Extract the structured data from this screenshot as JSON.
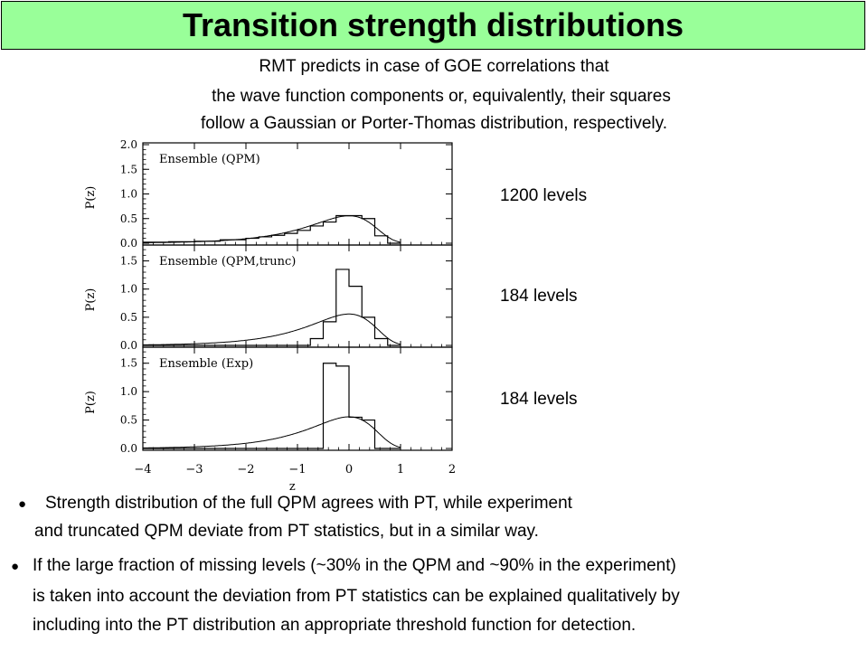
{
  "header": {
    "title": "Transition strength distributions"
  },
  "intro": {
    "line1": "RMT predicts in case of GOE correlations that",
    "line2": "the wave function components or, equivalently, their squares",
    "line3": "follow a Gaussian or Porter-Thomas distribution, respectively."
  },
  "annotations": {
    "panel1_levels": "1200 levels",
    "panel2_levels": "184 levels",
    "panel3_levels": "184 levels"
  },
  "bullets": {
    "symbol": "●",
    "b1_line1": "Strength distribution of the full QPM agrees with PT, while experiment",
    "b1_line2": "and truncated QPM deviate from PT statistics, but in a similar way.",
    "b2_line1": "If the large fraction of missing levels (~30% in the QPM and ~90% in the experiment)",
    "b2_line2": "is taken into account the deviation from PT statistics can be explained qualitatively by",
    "b2_line3": "including into the PT distribution an appropriate threshold function for detection."
  },
  "chart_data": [
    {
      "type": "line",
      "title": "Ensemble (QPM)",
      "xlabel": "z",
      "ylabel": "P(z)",
      "xlim": [
        -4,
        2
      ],
      "ylim": [
        0,
        2.0
      ],
      "yticks": [
        "0.0",
        "0.5",
        "1.0",
        "1.5",
        "2.0"
      ],
      "xticks": [
        "−4",
        "−3",
        "−2",
        "−1",
        "0",
        "1",
        "2"
      ],
      "grid": false,
      "histogram": {
        "edges": [
          -4.0,
          -3.5,
          -3.0,
          -2.5,
          -2.0,
          -1.75,
          -1.5,
          -1.25,
          -1.0,
          -0.75,
          -0.5,
          -0.25,
          0.0,
          0.25,
          0.5,
          0.75,
          1.0
        ],
        "values": [
          0.02,
          0.03,
          0.04,
          0.07,
          0.1,
          0.13,
          0.16,
          0.2,
          0.26,
          0.35,
          0.43,
          0.56,
          0.56,
          0.5,
          0.15,
          0.0
        ]
      },
      "curve": "porter-thomas-log"
    },
    {
      "type": "line",
      "title": "Ensemble (QPM,trunc)",
      "xlabel": "z",
      "ylabel": "P(z)",
      "xlim": [
        -4,
        2
      ],
      "ylim": [
        0,
        1.75
      ],
      "yticks": [
        "0.0",
        "0.5",
        "1.0",
        "1.5"
      ],
      "xticks": [
        "−4",
        "−3",
        "−2",
        "−1",
        "0",
        "1",
        "2"
      ],
      "grid": false,
      "histogram": {
        "edges": [
          -4.0,
          -0.75,
          -0.5,
          -0.25,
          0.0,
          0.25,
          0.5,
          0.75,
          1.0
        ],
        "values": [
          0.0,
          0.12,
          0.42,
          1.35,
          1.05,
          0.5,
          0.12,
          0.0
        ]
      },
      "curve": "porter-thomas-log"
    },
    {
      "type": "line",
      "title": "Ensemble (Exp)",
      "xlabel": "z",
      "ylabel": "P(z)",
      "xlim": [
        -4,
        2
      ],
      "ylim": [
        0,
        1.75
      ],
      "yticks": [
        "0.0",
        "0.5",
        "1.0",
        "1.5"
      ],
      "xticks": [
        "−4",
        "−3",
        "−2",
        "−1",
        "0",
        "1",
        "2"
      ],
      "grid": false,
      "histogram": {
        "edges": [
          -4.0,
          -0.5,
          -0.25,
          0.0,
          0.25,
          0.5,
          0.75,
          1.0
        ],
        "values": [
          0.0,
          1.5,
          1.45,
          0.55,
          0.5,
          0.0,
          0.0
        ]
      },
      "curve": "porter-thomas-log"
    }
  ]
}
